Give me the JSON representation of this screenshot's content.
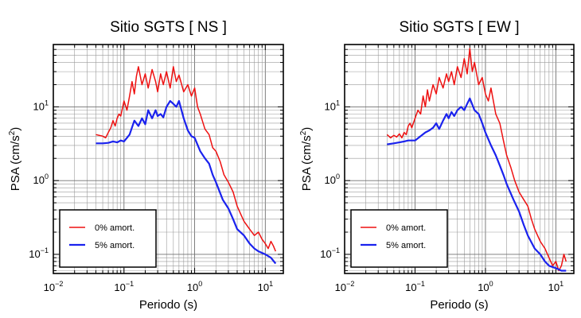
{
  "chart_data": [
    {
      "type": "line",
      "title": "Sitio SGTS [ NS ]",
      "xlabel": "Periodo (s)",
      "ylabel_main": "PSA (cm/s",
      "ylabel_sup": "2",
      "ylabel_end": ")",
      "xscale": "log",
      "yscale": "log",
      "xlim": [
        0.01,
        18
      ],
      "ylim": [
        0.055,
        70
      ],
      "grid": true,
      "legend_position": "bottom-left",
      "xtick_labels": [
        {
          "value": 0.01,
          "base": "10",
          "exp": "−2"
        },
        {
          "value": 0.1,
          "base": "10",
          "exp": "−1"
        },
        {
          "value": 1,
          "base": "10",
          "exp": "0"
        },
        {
          "value": 10,
          "base": "10",
          "exp": "1"
        }
      ],
      "ytick_labels": [
        {
          "value": 0.1,
          "base": "10",
          "exp": "−1"
        },
        {
          "value": 1,
          "base": "10",
          "exp": "0"
        },
        {
          "value": 10,
          "base": "10",
          "exp": "1"
        }
      ],
      "series": [
        {
          "name": "0% amort.",
          "color": "#ee1111",
          "x": [
            0.04,
            0.05,
            0.055,
            0.06,
            0.065,
            0.07,
            0.075,
            0.08,
            0.085,
            0.09,
            0.1,
            0.11,
            0.12,
            0.13,
            0.14,
            0.15,
            0.16,
            0.18,
            0.2,
            0.22,
            0.25,
            0.28,
            0.3,
            0.33,
            0.36,
            0.4,
            0.45,
            0.5,
            0.55,
            0.6,
            0.7,
            0.8,
            0.9,
            1.0,
            1.1,
            1.2,
            1.4,
            1.6,
            1.8,
            2.0,
            2.3,
            2.6,
            3.0,
            3.5,
            4.0,
            4.5,
            5.0,
            6.0,
            7.0,
            8.0,
            9.0,
            10.0,
            11.0,
            12.0,
            13.0,
            14.0
          ],
          "y": [
            4.2,
            4.0,
            3.8,
            4.5,
            5.2,
            6.5,
            5.5,
            7.0,
            8.0,
            7.5,
            12,
            9,
            14,
            22,
            15,
            26,
            35,
            20,
            28,
            18,
            32,
            22,
            16,
            28,
            20,
            30,
            18,
            35,
            22,
            27,
            16,
            20,
            14,
            18,
            10,
            8,
            5,
            4.2,
            2.8,
            2.5,
            1.8,
            1.2,
            0.95,
            0.7,
            0.45,
            0.35,
            0.28,
            0.22,
            0.18,
            0.2,
            0.16,
            0.14,
            0.12,
            0.15,
            0.13,
            0.11
          ]
        },
        {
          "name": "5% amort.",
          "color": "#1a22ee",
          "x": [
            0.04,
            0.05,
            0.06,
            0.07,
            0.08,
            0.09,
            0.1,
            0.12,
            0.14,
            0.16,
            0.18,
            0.2,
            0.22,
            0.25,
            0.28,
            0.3,
            0.33,
            0.36,
            0.4,
            0.45,
            0.5,
            0.55,
            0.6,
            0.7,
            0.8,
            0.9,
            1.0,
            1.2,
            1.4,
            1.6,
            1.8,
            2.0,
            2.5,
            3.0,
            3.5,
            4.0,
            5.0,
            6.0,
            7.0,
            8.0,
            10.0,
            12.0,
            14.0
          ],
          "y": [
            3.2,
            3.2,
            3.25,
            3.4,
            3.3,
            3.5,
            3.4,
            4.2,
            6.5,
            5.5,
            7,
            5.8,
            9,
            7,
            9,
            7.5,
            8,
            7.2,
            10,
            12,
            11,
            10,
            12,
            7,
            4.8,
            4.0,
            3.8,
            2.5,
            2.0,
            1.7,
            1.2,
            0.95,
            0.55,
            0.42,
            0.3,
            0.22,
            0.18,
            0.14,
            0.12,
            0.11,
            0.1,
            0.09,
            0.075
          ]
        }
      ]
    },
    {
      "type": "line",
      "title": "Sitio SGTS [ EW ]",
      "xlabel": "Periodo (s)",
      "ylabel_main": "PSA (cm/s",
      "ylabel_sup": "2",
      "ylabel_end": ")",
      "xscale": "log",
      "yscale": "log",
      "xlim": [
        0.01,
        18
      ],
      "ylim": [
        0.055,
        70
      ],
      "grid": true,
      "legend_position": "bottom-left",
      "xtick_labels": [
        {
          "value": 0.01,
          "base": "10",
          "exp": "−2"
        },
        {
          "value": 0.1,
          "base": "10",
          "exp": "−1"
        },
        {
          "value": 1,
          "base": "10",
          "exp": "0"
        },
        {
          "value": 10,
          "base": "10",
          "exp": "1"
        }
      ],
      "ytick_labels": [
        {
          "value": 0.1,
          "base": "10",
          "exp": "−1"
        },
        {
          "value": 1,
          "base": "10",
          "exp": "0"
        },
        {
          "value": 10,
          "base": "10",
          "exp": "1"
        }
      ],
      "series": [
        {
          "name": "0% amort.",
          "color": "#ee1111",
          "x": [
            0.04,
            0.045,
            0.05,
            0.055,
            0.06,
            0.065,
            0.07,
            0.075,
            0.08,
            0.085,
            0.09,
            0.1,
            0.11,
            0.12,
            0.13,
            0.14,
            0.15,
            0.16,
            0.18,
            0.2,
            0.22,
            0.25,
            0.28,
            0.3,
            0.33,
            0.36,
            0.4,
            0.45,
            0.5,
            0.55,
            0.6,
            0.65,
            0.7,
            0.8,
            0.9,
            1.0,
            1.1,
            1.2,
            1.4,
            1.6,
            1.8,
            2.0,
            2.3,
            2.6,
            3.0,
            3.5,
            4.0,
            4.5,
            5.0,
            6.0,
            7.0,
            8.0,
            9.0,
            10.0,
            11.0,
            12.0,
            13.0,
            14.0
          ],
          "y": [
            4.2,
            3.8,
            4.1,
            3.9,
            4.3,
            3.8,
            4.5,
            4.2,
            5.5,
            6.0,
            5.2,
            7,
            9,
            8,
            14,
            10,
            17,
            12,
            20,
            15,
            25,
            18,
            28,
            22,
            30,
            20,
            35,
            25,
            45,
            28,
            62,
            30,
            40,
            20,
            25,
            15,
            12,
            18,
            8,
            6,
            3.5,
            2.2,
            1.5,
            1.0,
            0.7,
            0.55,
            0.45,
            0.3,
            0.22,
            0.15,
            0.12,
            0.09,
            0.07,
            0.08,
            0.06,
            0.07,
            0.1,
            0.08
          ]
        },
        {
          "name": "5% amort.",
          "color": "#1a22ee",
          "x": [
            0.04,
            0.05,
            0.06,
            0.07,
            0.08,
            0.09,
            0.1,
            0.12,
            0.14,
            0.16,
            0.18,
            0.2,
            0.22,
            0.25,
            0.28,
            0.3,
            0.33,
            0.36,
            0.4,
            0.45,
            0.5,
            0.55,
            0.6,
            0.7,
            0.8,
            0.9,
            1.0,
            1.2,
            1.4,
            1.6,
            1.8,
            2.0,
            2.5,
            3.0,
            3.5,
            4.0,
            5.0,
            6.0,
            7.0,
            8.0,
            10.0,
            12.0,
            14.0
          ],
          "y": [
            3.1,
            3.2,
            3.3,
            3.4,
            3.5,
            3.5,
            3.5,
            4.0,
            4.5,
            4.8,
            5.2,
            6.0,
            5.0,
            6.5,
            8.0,
            7.0,
            8.5,
            7.5,
            9,
            10,
            9,
            11,
            13,
            9,
            8,
            6,
            4.5,
            3.0,
            2.2,
            1.6,
            1.2,
            0.9,
            0.55,
            0.38,
            0.25,
            0.18,
            0.12,
            0.1,
            0.08,
            0.07,
            0.065,
            0.06,
            0.06
          ]
        }
      ]
    }
  ]
}
